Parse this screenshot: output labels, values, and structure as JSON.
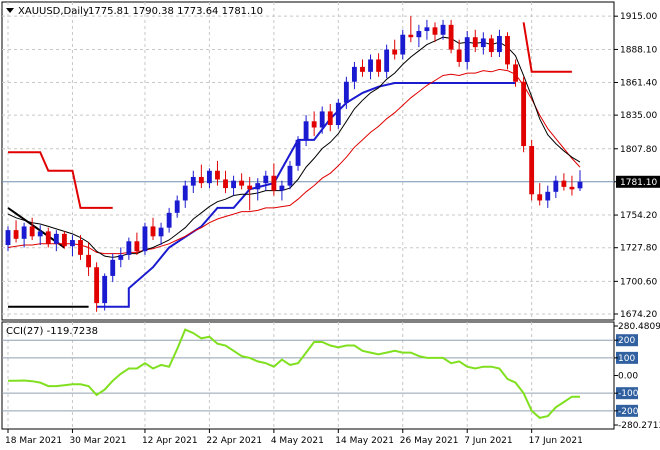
{
  "header": {
    "symbol_line": "XAUUSD,Daily",
    "ohlc_line": "1775.81 1790.38 1773.64 1781.10",
    "indicator_line": "CCI(27) -119.7238"
  },
  "colors": {
    "bull": "#1a1ad0",
    "bear": "#e00000",
    "ema_fast": "#000000",
    "ema_slow": "#e00000",
    "channel_low": "#1a1ad0",
    "channel_high": "#e00000",
    "cci": "#80e020",
    "level_box": "#3060a0"
  },
  "chart_data": [
    {
      "type": "candlestick",
      "title": "XAUUSD,Daily",
      "ylim": [
        1674.2,
        1920.0
      ],
      "y_ticks": [
        "1915.00",
        "1888.10",
        "1861.40",
        "1835.00",
        "1807.80",
        "1781.10",
        "1754.20",
        "1727.80",
        "1700.60",
        "1674.20"
      ],
      "x_labels": [
        "18 Mar 2021",
        "30 Mar 2021",
        "12 Apr 2021",
        "22 Apr 2021",
        "4 May 2021",
        "14 May 2021",
        "26 May 2021",
        "7 Jun 2021",
        "17 Jun 2021"
      ],
      "current_price": "1781.10",
      "candles": [
        [
          1730,
          1745,
          1725,
          1742
        ],
        [
          1742,
          1750,
          1732,
          1735
        ],
        [
          1735,
          1748,
          1728,
          1745
        ],
        [
          1745,
          1752,
          1734,
          1737
        ],
        [
          1737,
          1746,
          1730,
          1741
        ],
        [
          1741,
          1744,
          1728,
          1731
        ],
        [
          1731,
          1742,
          1725,
          1739
        ],
        [
          1739,
          1741,
          1727,
          1729
        ],
        [
          1729,
          1738,
          1721,
          1734
        ],
        [
          1734,
          1738,
          1718,
          1722
        ],
        [
          1722,
          1732,
          1705,
          1712
        ],
        [
          1712,
          1716,
          1676,
          1683
        ],
        [
          1683,
          1707,
          1677,
          1705
        ],
        [
          1705,
          1723,
          1700,
          1718
        ],
        [
          1718,
          1728,
          1712,
          1722
        ],
        [
          1722,
          1736,
          1718,
          1733
        ],
        [
          1733,
          1740,
          1722,
          1725
        ],
        [
          1725,
          1748,
          1722,
          1745
        ],
        [
          1745,
          1752,
          1734,
          1737
        ],
        [
          1737,
          1748,
          1730,
          1744
        ],
        [
          1744,
          1760,
          1740,
          1756
        ],
        [
          1756,
          1770,
          1752,
          1766
        ],
        [
          1766,
          1782,
          1760,
          1778
        ],
        [
          1778,
          1790,
          1772,
          1785
        ],
        [
          1785,
          1795,
          1776,
          1780
        ],
        [
          1780,
          1792,
          1776,
          1790
        ],
        [
          1790,
          1798,
          1778,
          1783
        ],
        [
          1783,
          1790,
          1772,
          1776
        ],
        [
          1776,
          1786,
          1770,
          1782
        ],
        [
          1782,
          1788,
          1775,
          1778
        ],
        [
          1778,
          1785,
          1758,
          1775
        ],
        [
          1775,
          1784,
          1766,
          1780
        ],
        [
          1780,
          1790,
          1774,
          1786
        ],
        [
          1786,
          1796,
          1770,
          1774
        ],
        [
          1774,
          1782,
          1766,
          1778
        ],
        [
          1778,
          1798,
          1775,
          1794
        ],
        [
          1794,
          1818,
          1790,
          1815
        ],
        [
          1815,
          1835,
          1810,
          1830
        ],
        [
          1830,
          1838,
          1818,
          1825
        ],
        [
          1825,
          1842,
          1820,
          1838
        ],
        [
          1838,
          1844,
          1822,
          1827
        ],
        [
          1827,
          1848,
          1824,
          1845
        ],
        [
          1845,
          1866,
          1840,
          1862
        ],
        [
          1862,
          1878,
          1856,
          1874
        ],
        [
          1874,
          1880,
          1866,
          1870
        ],
        [
          1870,
          1884,
          1864,
          1880
        ],
        [
          1880,
          1885,
          1866,
          1870
        ],
        [
          1870,
          1892,
          1865,
          1888
        ],
        [
          1888,
          1896,
          1880,
          1884
        ],
        [
          1884,
          1904,
          1880,
          1900
        ],
        [
          1900,
          1915,
          1894,
          1898
        ],
        [
          1898,
          1908,
          1890,
          1903
        ],
        [
          1903,
          1912,
          1896,
          1906
        ],
        [
          1906,
          1910,
          1894,
          1900
        ],
        [
          1900,
          1912,
          1896,
          1908
        ],
        [
          1908,
          1912,
          1885,
          1888
        ],
        [
          1888,
          1896,
          1874,
          1878
        ],
        [
          1878,
          1903,
          1872,
          1898
        ],
        [
          1898,
          1904,
          1886,
          1890
        ],
        [
          1890,
          1902,
          1884,
          1897
        ],
        [
          1897,
          1900,
          1882,
          1886
        ],
        [
          1886,
          1904,
          1882,
          1899
        ],
        [
          1899,
          1902,
          1872,
          1876
        ],
        [
          1876,
          1880,
          1858,
          1862
        ],
        [
          1862,
          1866,
          1805,
          1810
        ],
        [
          1810,
          1815,
          1766,
          1771
        ],
        [
          1771,
          1780,
          1762,
          1766
        ],
        [
          1766,
          1778,
          1760,
          1773
        ],
        [
          1773,
          1786,
          1768,
          1782
        ],
        [
          1782,
          1788,
          1774,
          1777
        ],
        [
          1777,
          1786,
          1770,
          1775
        ],
        [
          1775.81,
          1790.38,
          1773.64,
          1781.1
        ]
      ],
      "ema_fast": [
        1755,
        1752,
        1750,
        1748,
        1747,
        1745,
        1743,
        1741,
        1739,
        1736,
        1732,
        1725,
        1721,
        1720,
        1721,
        1723,
        1723,
        1726,
        1728,
        1731,
        1734,
        1739,
        1744,
        1751,
        1756,
        1761,
        1765,
        1767,
        1770,
        1771,
        1771,
        1772,
        1774,
        1774,
        1774,
        1776,
        1783,
        1793,
        1800,
        1808,
        1813,
        1820,
        1830,
        1840,
        1847,
        1853,
        1857,
        1864,
        1869,
        1876,
        1882,
        1887,
        1892,
        1895,
        1898,
        1897,
        1893,
        1894,
        1893,
        1894,
        1892,
        1894,
        1890,
        1883,
        1867,
        1850,
        1832,
        1819,
        1812,
        1806,
        1801,
        1797
      ],
      "ema_slow": [
        1728,
        1729,
        1730,
        1730,
        1731,
        1731,
        1731,
        1731,
        1731,
        1730,
        1728,
        1724,
        1723,
        1723,
        1723,
        1724,
        1724,
        1726,
        1727,
        1729,
        1731,
        1734,
        1737,
        1741,
        1744,
        1748,
        1751,
        1753,
        1755,
        1757,
        1757,
        1758,
        1760,
        1760,
        1761,
        1762,
        1767,
        1773,
        1778,
        1784,
        1788,
        1794,
        1801,
        1809,
        1815,
        1821,
        1826,
        1832,
        1837,
        1843,
        1849,
        1854,
        1859,
        1863,
        1867,
        1868,
        1867,
        1869,
        1869,
        1871,
        1870,
        1872,
        1871,
        1868,
        1859,
        1848,
        1835,
        1824,
        1816,
        1808,
        1800,
        1793
      ],
      "channel_low_segments": [
        [
          [
            11,
            1680
          ],
          [
            15,
            1680
          ],
          [
            15,
            1695
          ],
          [
            18,
            1712
          ],
          [
            20,
            1728
          ],
          [
            24,
            1745
          ],
          [
            26,
            1760
          ],
          [
            28,
            1760
          ],
          [
            30,
            1775
          ],
          [
            33,
            1780
          ],
          [
            36,
            1815
          ],
          [
            38,
            1815
          ],
          [
            40,
            1832
          ],
          [
            42,
            1845
          ],
          [
            44,
            1853
          ],
          [
            46,
            1858
          ],
          [
            48,
            1861
          ],
          [
            63,
            1861
          ]
        ]
      ],
      "channel_high_segments": [
        [
          [
            0,
            1805
          ],
          [
            4,
            1805
          ],
          [
            5,
            1790
          ],
          [
            8,
            1790
          ],
          [
            9,
            1760
          ],
          [
            13,
            1760
          ]
        ],
        [
          [
            64,
            1910
          ],
          [
            65,
            1870
          ],
          [
            70,
            1870
          ]
        ]
      ],
      "bottom_line_segments": [
        [
          [
            0,
            1680
          ],
          [
            10,
            1680
          ]
        ]
      ],
      "diagonal_segments": [
        [
          [
            0,
            1760
          ],
          [
            7,
            1728
          ]
        ]
      ]
    },
    {
      "type": "line",
      "title": "CCI(27) -119.7238",
      "ylim": [
        -280.2713,
        280.4809
      ],
      "y_ticks": [
        "280.4809",
        "200",
        "100",
        "0.00",
        "-100",
        "-200",
        "-280.2713"
      ],
      "levels": [
        200,
        100,
        -100,
        -200
      ],
      "values": [
        -30,
        -30,
        -28,
        -32,
        -40,
        -60,
        -60,
        -55,
        -50,
        -50,
        -60,
        -110,
        -80,
        -30,
        10,
        40,
        40,
        70,
        40,
        60,
        50,
        150,
        260,
        240,
        210,
        220,
        180,
        170,
        140,
        110,
        100,
        80,
        70,
        50,
        90,
        60,
        70,
        130,
        190,
        190,
        170,
        160,
        170,
        170,
        140,
        130,
        120,
        130,
        140,
        130,
        130,
        110,
        100,
        100,
        100,
        70,
        80,
        50,
        40,
        50,
        50,
        40,
        -20,
        -40,
        -100,
        -200,
        -240,
        -230,
        -180,
        -150,
        -120,
        -120
      ]
    }
  ]
}
